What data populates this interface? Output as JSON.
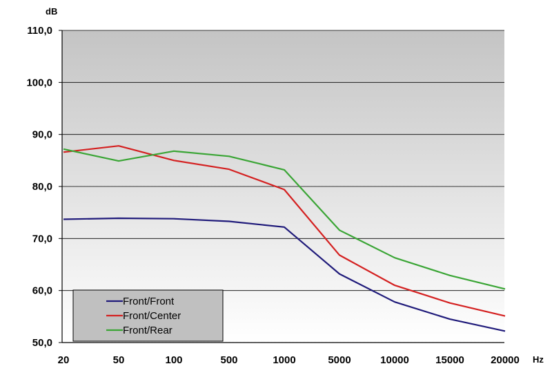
{
  "chart_data": {
    "type": "line",
    "y_unit": "dB",
    "x_unit": "Hz",
    "categories": [
      "20",
      "50",
      "100",
      "500",
      "1000",
      "5000",
      "10000",
      "15000",
      "20000"
    ],
    "y_ticks": [
      "50,0",
      "60,0",
      "70,0",
      "80,0",
      "90,0",
      "100,0",
      "110,0"
    ],
    "ylim": [
      50,
      110
    ],
    "grid": true,
    "legend_position": "bottom-left",
    "series": [
      {
        "name": "Front/Front",
        "color": "#1f1a7a",
        "values": [
          73.7,
          73.9,
          73.8,
          73.3,
          72.2,
          63.2,
          57.8,
          54.5,
          52.2
        ]
      },
      {
        "name": "Front/Center",
        "color": "#d42020",
        "values": [
          86.6,
          87.8,
          85.0,
          83.3,
          79.4,
          66.8,
          61.0,
          57.6,
          55.1
        ]
      },
      {
        "name": "Front/Rear",
        "color": "#3aa535",
        "values": [
          87.2,
          84.9,
          86.8,
          85.8,
          83.2,
          71.6,
          66.3,
          62.9,
          60.3
        ]
      }
    ]
  }
}
